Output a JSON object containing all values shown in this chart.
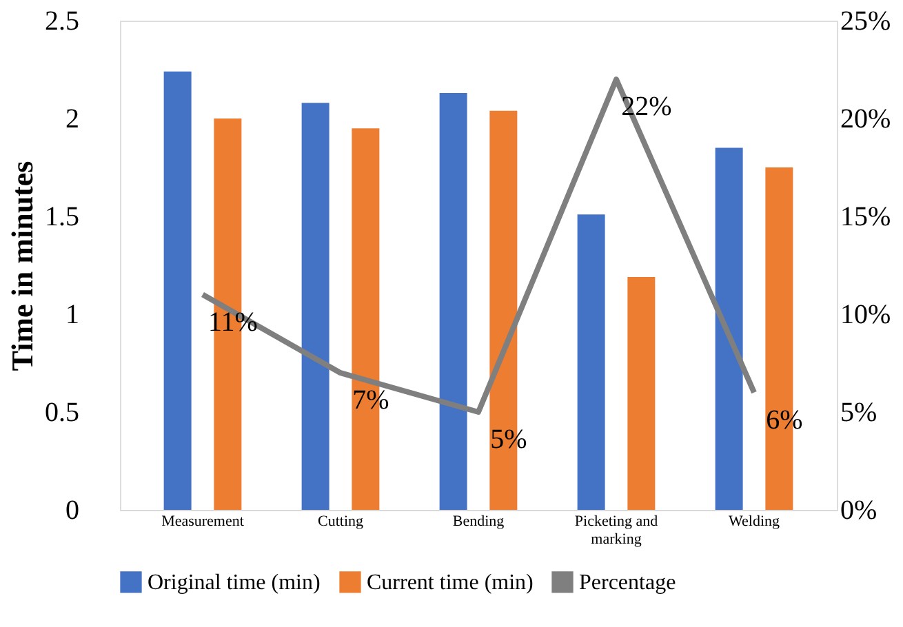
{
  "chart_data": {
    "type": "bar",
    "ylabel": "Time in minutes",
    "categories": [
      "Measurement",
      "Cutting",
      "Bending",
      "Picketing and marking",
      "Welding"
    ],
    "series": [
      {
        "name": "Original time (min)",
        "color": "#4472c4",
        "values": [
          2.24,
          2.08,
          2.13,
          1.51,
          1.85
        ]
      },
      {
        "name": "Current time (min)",
        "color": "#ed7d31",
        "values": [
          2.0,
          1.95,
          2.04,
          1.19,
          1.75
        ]
      },
      {
        "name": "Percentage",
        "type": "line",
        "axis": "y2",
        "color": "#7f7f7f",
        "values": [
          11,
          7,
          5,
          22,
          6
        ],
        "value_labels": [
          "11%",
          "7%",
          "5%",
          "22%",
          "6%"
        ]
      }
    ],
    "ylim": [
      0,
      2.5
    ],
    "yticks": [
      0,
      0.5,
      1,
      1.5,
      2,
      2.5
    ],
    "y2lim": [
      0,
      25
    ],
    "y2ticks": [
      {
        "value": 0,
        "label": "0%"
      },
      {
        "value": 5,
        "label": "5%"
      },
      {
        "value": 10,
        "label": "10%"
      },
      {
        "value": 15,
        "label": "15%"
      },
      {
        "value": 20,
        "label": "20%"
      },
      {
        "value": 25,
        "label": "25%"
      }
    ],
    "grid": false,
    "legend": "bottom"
  }
}
